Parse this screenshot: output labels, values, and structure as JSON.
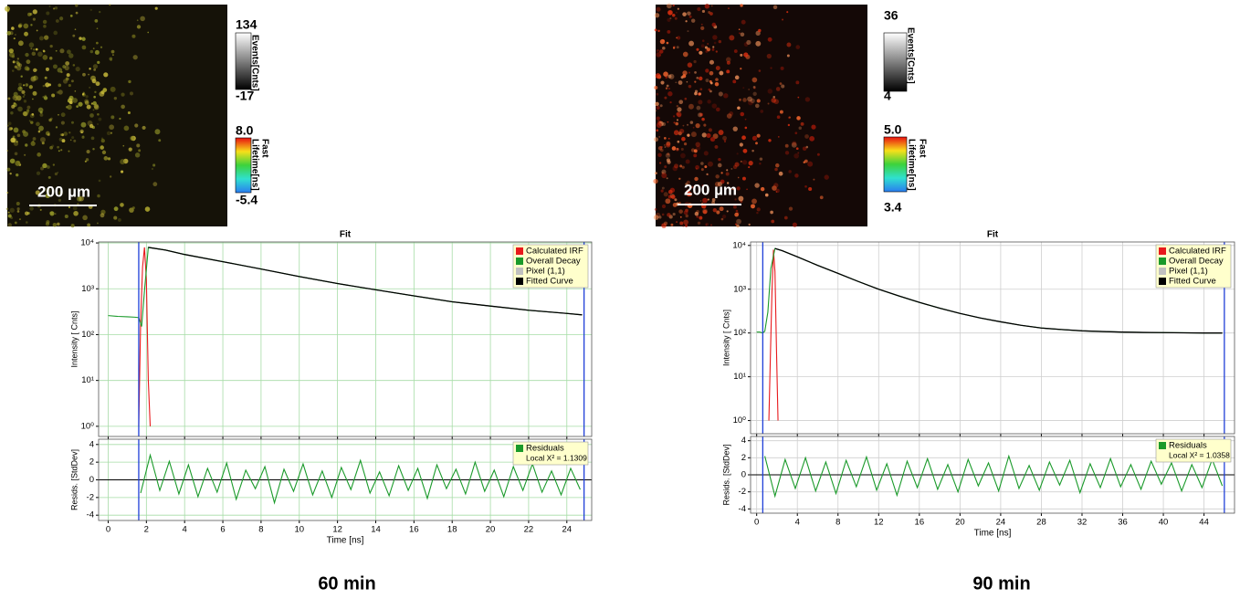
{
  "panels": [
    {
      "scale_bar": "200 µm",
      "events_colorbar": {
        "label": "Events[Cnts]",
        "max": 134,
        "min": -17
      },
      "lifetime_colorbar": {
        "label_1": "Fast",
        "label_2": "Lifetime[ns]",
        "max": {
          "value": 8,
          "label": "8.0"
        },
        "min": -5.4
      },
      "caption": "60 min"
    },
    {
      "scale_bar": "200 µm",
      "events_colorbar": {
        "label": "Events[Cnts]",
        "max": 36,
        "min": 4
      },
      "lifetime_colorbar": {
        "label_1": "Fast",
        "label_2": "Lifetime[ns]",
        "max": {
          "value": 5,
          "label": "5.0"
        },
        "min": 3.4
      },
      "caption": "90 min"
    }
  ],
  "chart_data": [
    {
      "type": "line",
      "title": "Fit",
      "y_label": "Intensity [ Cnts]",
      "ylog": true,
      "xlim": [
        -0.5,
        25.3
      ],
      "xticks": [
        0,
        2,
        4,
        6,
        8,
        10,
        12,
        14,
        16,
        18,
        20,
        22,
        24
      ],
      "xtick_labels": false,
      "ylim": [
        0.6,
        10500
      ],
      "yticks": [
        {
          "value": 1,
          "label": "10⁰"
        },
        {
          "value": 10,
          "label": "10¹"
        },
        {
          "value": 100,
          "label": "10²"
        },
        {
          "value": 1000,
          "label": "10³"
        },
        {
          "value": 10000,
          "label": "10⁴"
        }
      ],
      "grid": true,
      "grid_color": "#a6dca6",
      "legend": "upper right",
      "cursors": [
        1.6,
        24.9
      ],
      "series": [
        {
          "name": "Calculated IRF",
          "color": "#e8191c",
          "x": [
            1.6,
            1.7,
            1.8,
            1.9,
            2.0,
            2.1,
            2.2
          ],
          "values": [
            1,
            200,
            3000,
            8000,
            1500,
            10,
            1
          ]
        },
        {
          "name": "Overall Decay",
          "color": "#1a9a2a",
          "x": [
            0,
            0.5,
            1,
            1.4,
            1.6,
            1.75,
            1.9,
            2.1,
            3,
            4,
            6,
            8,
            10,
            12,
            14,
            16,
            18,
            20,
            22,
            24,
            24.8
          ],
          "values": [
            260,
            250,
            245,
            240,
            235,
            150,
            900,
            8000,
            7000,
            5600,
            3900,
            2700,
            1850,
            1300,
            950,
            700,
            520,
            420,
            340,
            290,
            270
          ]
        },
        {
          "name": "Pixel (1,1)",
          "color": "#c0c0c0"
        },
        {
          "name": "Fitted Curve",
          "color": "#000000",
          "x": [
            2.1,
            3,
            4,
            6,
            8,
            10,
            12,
            14,
            16,
            18,
            20,
            22,
            24,
            24.8
          ],
          "values": [
            8000,
            7000,
            5600,
            3900,
            2700,
            1850,
            1300,
            950,
            700,
            520,
            420,
            340,
            290,
            270
          ]
        }
      ]
    },
    {
      "type": "line",
      "y_label": "Resids. [StdDev]",
      "x_label": "Time [ns]",
      "xlim": [
        -0.5,
        25.3
      ],
      "xticks": [
        0,
        2,
        4,
        6,
        8,
        10,
        12,
        14,
        16,
        18,
        20,
        22,
        24
      ],
      "ylim": [
        -4.6,
        4.6
      ],
      "yticks": [
        -4,
        -2,
        0,
        2,
        4
      ],
      "grid": true,
      "grid_color": "#a6dca6",
      "legend": "upper right",
      "annotation": "Local X² = 1.1309",
      "cursors": [
        1.6,
        24.9
      ],
      "series": [
        {
          "name": "Residuals",
          "color": "#1a9a2a",
          "x": [
            1.7,
            2.2,
            2.7,
            3.2,
            3.7,
            4.2,
            4.7,
            5.2,
            5.7,
            6.2,
            6.7,
            7.2,
            7.7,
            8.2,
            8.7,
            9.2,
            9.7,
            10.2,
            10.7,
            11.2,
            11.7,
            12.2,
            12.7,
            13.2,
            13.7,
            14.2,
            14.7,
            15.2,
            15.7,
            16.2,
            16.7,
            17.2,
            17.7,
            18.2,
            18.7,
            19.2,
            19.7,
            20.2,
            20.7,
            21.2,
            21.7,
            22.2,
            22.7,
            23.2,
            23.7,
            24.2,
            24.7
          ],
          "values": [
            -1.5,
            2.8,
            -1.2,
            2.1,
            -1.6,
            1.7,
            -1.9,
            1.3,
            -1.4,
            1.9,
            -2.2,
            1.1,
            -1.0,
            1.5,
            -2.6,
            1.2,
            -1.3,
            1.8,
            -1.7,
            1.0,
            -2.0,
            1.4,
            -1.1,
            2.2,
            -1.5,
            0.9,
            -1.8,
            1.6,
            -1.2,
            1.3,
            -2.1,
            1.7,
            -1.0,
            1.2,
            -1.6,
            2.0,
            -1.3,
            1.1,
            -1.9,
            1.5,
            -1.2,
            1.8,
            -1.4,
            1.0,
            -1.7,
            1.3,
            -1.1
          ]
        }
      ]
    },
    {
      "type": "line",
      "title": "Fit",
      "y_label": "Intensity [ Cnts]",
      "ylog": true,
      "xlim": [
        -0.6,
        47
      ],
      "xticks": [
        0,
        4,
        8,
        12,
        16,
        20,
        24,
        28,
        32,
        36,
        40,
        44
      ],
      "xtick_labels": false,
      "ylim": [
        0.5,
        12000
      ],
      "yticks": [
        {
          "value": 1,
          "label": "10⁰"
        },
        {
          "value": 10,
          "label": "10¹"
        },
        {
          "value": 100,
          "label": "10²"
        },
        {
          "value": 1000,
          "label": "10³"
        },
        {
          "value": 10000,
          "label": "10⁴"
        }
      ],
      "grid": true,
      "grid_color": "#cfcfcf",
      "legend": "upper right",
      "cursors": [
        0.6,
        46
      ],
      "series": [
        {
          "name": "Calculated IRF",
          "color": "#e8191c",
          "x": [
            1.2,
            1.35,
            1.5,
            1.65,
            1.8,
            1.95,
            2.1
          ],
          "values": [
            1,
            30,
            800,
            8000,
            2500,
            40,
            1
          ]
        },
        {
          "name": "Overall Decay",
          "color": "#1a9a2a",
          "x": [
            0,
            0.3,
            0.6,
            0.8,
            1.1,
            1.4,
            1.8,
            2.5,
            4,
            6,
            8,
            10,
            12,
            14,
            16,
            18,
            20,
            22,
            24,
            26,
            28,
            30,
            32,
            34,
            36,
            38,
            40,
            42,
            44,
            45.8
          ],
          "values": [
            105,
            105,
            100,
            110,
            300,
            3000,
            8500,
            7600,
            5500,
            3500,
            2300,
            1500,
            1000,
            700,
            500,
            370,
            280,
            220,
            180,
            150,
            130,
            120,
            112,
            108,
            105,
            103,
            102,
            101,
            100,
            100
          ]
        },
        {
          "name": "Pixel (1,1)",
          "color": "#c0c0c0"
        },
        {
          "name": "Fitted Curve",
          "color": "#000000",
          "x": [
            1.8,
            2.5,
            4,
            6,
            8,
            10,
            12,
            14,
            16,
            18,
            20,
            22,
            24,
            26,
            28,
            30,
            32,
            34,
            36,
            38,
            40,
            42,
            44,
            45.8
          ],
          "values": [
            8500,
            7600,
            5500,
            3500,
            2300,
            1500,
            1000,
            700,
            500,
            370,
            280,
            220,
            180,
            150,
            130,
            120,
            112,
            108,
            105,
            103,
            102,
            101,
            100,
            100
          ]
        }
      ]
    },
    {
      "type": "line",
      "y_label": "Resids. [StdDev]",
      "x_label": "Time [ns]",
      "xlim": [
        -0.6,
        47
      ],
      "xticks": [
        0,
        4,
        8,
        12,
        16,
        20,
        24,
        28,
        32,
        36,
        40,
        44
      ],
      "ylim": [
        -4.5,
        4.5
      ],
      "yticks": [
        -4,
        -2,
        0,
        2,
        4
      ],
      "grid": true,
      "grid_color": "#cfcfcf",
      "legend": "upper right",
      "annotation": "Local X² = 1.0358",
      "cursors": [
        0.6,
        46
      ],
      "series": [
        {
          "name": "Residuals",
          "color": "#1a9a2a",
          "x": [
            0.8,
            1.8,
            2.8,
            3.8,
            4.8,
            5.8,
            6.8,
            7.8,
            8.8,
            9.8,
            10.8,
            11.8,
            12.8,
            13.8,
            14.8,
            15.8,
            16.8,
            17.8,
            18.8,
            19.8,
            20.8,
            21.8,
            22.8,
            23.8,
            24.8,
            25.8,
            26.8,
            27.8,
            28.8,
            29.8,
            30.8,
            31.8,
            32.8,
            33.8,
            34.8,
            35.8,
            36.8,
            37.8,
            38.8,
            39.8,
            40.8,
            41.8,
            42.8,
            43.8,
            44.8,
            45.8
          ],
          "values": [
            2.2,
            -2.5,
            1.8,
            -1.6,
            2.0,
            -1.9,
            1.5,
            -2.2,
            1.7,
            -1.4,
            2.1,
            -1.8,
            1.3,
            -2.4,
            1.6,
            -1.5,
            1.9,
            -1.7,
            1.2,
            -2.0,
            1.8,
            -1.3,
            1.4,
            -1.9,
            2.2,
            -1.6,
            1.1,
            -1.8,
            1.5,
            -1.2,
            1.7,
            -2.1,
            1.3,
            -1.5,
            1.9,
            -1.4,
            1.2,
            -1.7,
            1.6,
            -1.1,
            1.4,
            -1.9,
            1.2,
            -1.5,
            1.8,
            -1.3
          ]
        }
      ]
    }
  ]
}
